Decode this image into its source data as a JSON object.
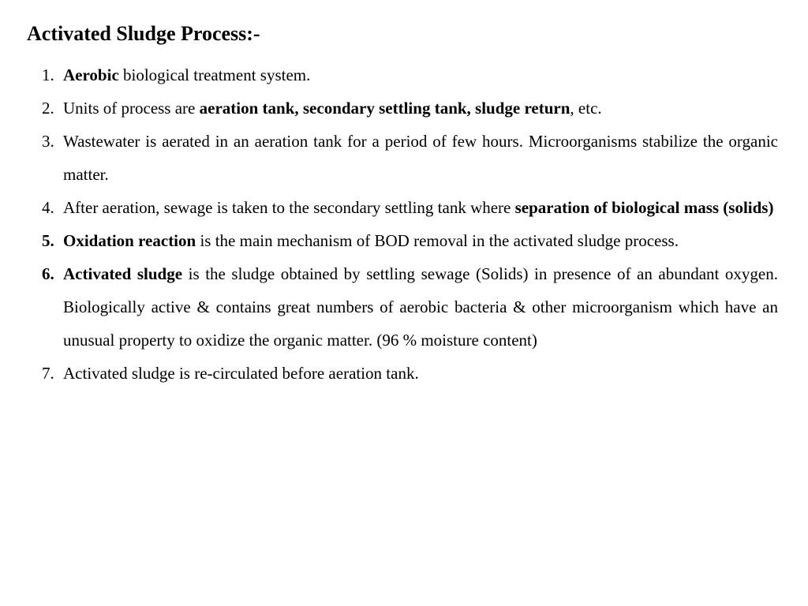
{
  "title": "Activated Sludge Process:-",
  "items": {
    "p1a": "Aerobic",
    "p1b": " biological treatment system.",
    "p2a": "Units of process are ",
    "p2b": "aeration tank, secondary settling tank, sludge return",
    "p2c": ", etc.",
    "p3": "Wastewater is aerated in an aeration tank for a period of few hours. Microorganisms stabilize the organic matter.",
    "p4a": "After aeration, sewage is taken to the secondary settling tank where ",
    "p4b": "separation of biological mass (solids)",
    "p5a": "Oxidation reaction",
    "p5b": " is the main mechanism of BOD removal in the activated sludge process.",
    "p6a": "Activated sludge",
    "p6b": " is the sludge obtained by settling sewage (Solids) in presence of an abundant oxygen. Biologically active & contains great numbers of aerobic bacteria & other microorganism which have an unusual property to oxidize the organic matter. (96 % moisture content)",
    "p7": "Activated sludge is re-circulated before aeration tank."
  },
  "style": {
    "background_color": "#ffffff",
    "text_color": "#000000",
    "font_family": "Times New Roman",
    "title_fontsize": 26,
    "body_fontsize": 21,
    "line_height": 2.0
  }
}
